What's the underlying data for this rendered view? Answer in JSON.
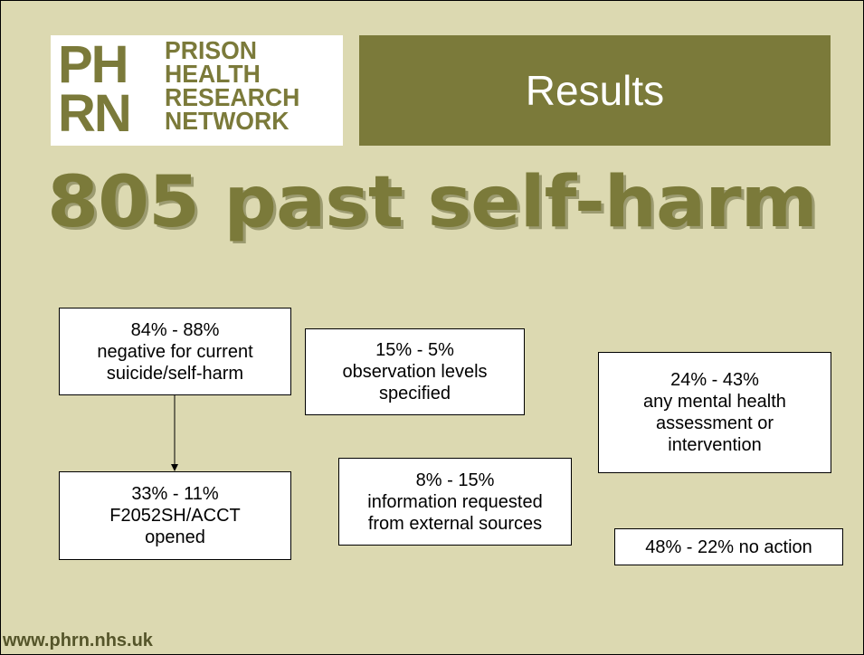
{
  "logo": {
    "initials": [
      "PH",
      "RN"
    ],
    "words": [
      "PRISON",
      "HEALTH",
      "RESEARCH",
      "NETWORK"
    ]
  },
  "title": "Results",
  "headline": "805 past self-harm",
  "boxes": [
    {
      "lines": [
        "84% - 88%",
        "negative for current",
        "suicide/self-harm"
      ]
    },
    {
      "lines": [
        "15% - 5%",
        "observation levels",
        "specified"
      ]
    },
    {
      "lines": [
        "24% - 43%",
        "any mental health",
        "assessment or",
        "intervention"
      ]
    },
    {
      "lines": [
        "33% - 11%",
        "F2052SH/ACCT",
        "opened"
      ]
    },
    {
      "lines": [
        "8% - 15%",
        "information requested",
        "from external sources"
      ]
    },
    {
      "lines": [
        "48% - 22% no action"
      ]
    }
  ],
  "footer": "www.phrn.nhs.uk"
}
